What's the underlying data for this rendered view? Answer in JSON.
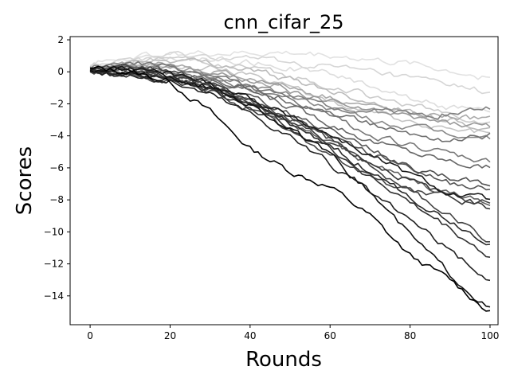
{
  "chart_data": {
    "type": "line",
    "title": "cnn_cifar_25",
    "xlabel": "Rounds",
    "ylabel": "Scores",
    "xlim": [
      -5,
      102
    ],
    "ylim": [
      -15.8,
      2.2
    ],
    "xticks": [
      0,
      20,
      40,
      60,
      80,
      100
    ],
    "yticks": [
      2,
      0,
      -2,
      -4,
      -6,
      -8,
      -10,
      -12,
      -14
    ],
    "grid": false,
    "legend": "none",
    "series": [
      {
        "color": "#000000",
        "points": [
          [
            0,
            0.2
          ],
          [
            10,
            0.0
          ],
          [
            20,
            -0.6
          ],
          [
            30,
            -2.5
          ],
          [
            40,
            -4.8
          ],
          [
            50,
            -6.2
          ],
          [
            60,
            -7.2
          ],
          [
            70,
            -9.0
          ],
          [
            80,
            -11.5
          ],
          [
            90,
            -13.0
          ],
          [
            100,
            -15.0
          ]
        ]
      },
      {
        "color": "#111111",
        "points": [
          [
            0,
            0.1
          ],
          [
            10,
            0.1
          ],
          [
            20,
            -0.3
          ],
          [
            30,
            -1.0
          ],
          [
            40,
            -2.0
          ],
          [
            50,
            -3.6
          ],
          [
            60,
            -5.3
          ],
          [
            70,
            -7.5
          ],
          [
            80,
            -10.2
          ],
          [
            90,
            -12.6
          ],
          [
            100,
            -14.8
          ]
        ]
      },
      {
        "color": "#222222",
        "points": [
          [
            0,
            0.0
          ],
          [
            10,
            -0.2
          ],
          [
            20,
            -0.6
          ],
          [
            30,
            -1.4
          ],
          [
            40,
            -2.6
          ],
          [
            50,
            -4.0
          ],
          [
            60,
            -5.8
          ],
          [
            70,
            -7.6
          ],
          [
            80,
            -9.3
          ],
          [
            90,
            -11.2
          ],
          [
            100,
            -13.1
          ]
        ]
      },
      {
        "color": "#333333",
        "points": [
          [
            0,
            0.1
          ],
          [
            10,
            0.0
          ],
          [
            20,
            -0.5
          ],
          [
            30,
            -1.2
          ],
          [
            40,
            -2.2
          ],
          [
            50,
            -3.4
          ],
          [
            60,
            -4.8
          ],
          [
            70,
            -6.5
          ],
          [
            80,
            -8.2
          ],
          [
            90,
            -9.8
          ],
          [
            100,
            -11.6
          ]
        ]
      },
      {
        "color": "#2a2a2a",
        "points": [
          [
            0,
            0.0
          ],
          [
            10,
            -0.1
          ],
          [
            20,
            -0.4
          ],
          [
            30,
            -1.1
          ],
          [
            40,
            -2.1
          ],
          [
            50,
            -3.3
          ],
          [
            60,
            -4.6
          ],
          [
            70,
            -6.2
          ],
          [
            80,
            -7.8
          ],
          [
            90,
            -9.3
          ],
          [
            100,
            -10.7
          ]
        ]
      },
      {
        "color": "#444444",
        "points": [
          [
            0,
            0.2
          ],
          [
            10,
            0.3
          ],
          [
            20,
            0.0
          ],
          [
            30,
            -0.8
          ],
          [
            40,
            -1.8
          ],
          [
            50,
            -3.0
          ],
          [
            60,
            -4.2
          ],
          [
            70,
            -5.8
          ],
          [
            80,
            -7.4
          ],
          [
            90,
            -9.0
          ],
          [
            100,
            -10.5
          ]
        ]
      },
      {
        "color": "#1a1a1a",
        "points": [
          [
            0,
            0.1
          ],
          [
            10,
            0.2
          ],
          [
            20,
            -0.1
          ],
          [
            30,
            -0.7
          ],
          [
            40,
            -1.6
          ],
          [
            50,
            -2.8
          ],
          [
            60,
            -3.9
          ],
          [
            70,
            -5.2
          ],
          [
            80,
            -6.4
          ],
          [
            90,
            -7.6
          ],
          [
            100,
            -8.0
          ]
        ]
      },
      {
        "color": "#3a3a3a",
        "points": [
          [
            0,
            0.0
          ],
          [
            10,
            0.0
          ],
          [
            20,
            -0.2
          ],
          [
            30,
            -0.9
          ],
          [
            40,
            -1.8
          ],
          [
            50,
            -3.1
          ],
          [
            60,
            -4.3
          ],
          [
            70,
            -5.6
          ],
          [
            80,
            -6.8
          ],
          [
            90,
            -7.8
          ],
          [
            100,
            -8.5
          ]
        ]
      },
      {
        "color": "#555555",
        "points": [
          [
            0,
            0.1
          ],
          [
            10,
            0.1
          ],
          [
            20,
            -0.2
          ],
          [
            30,
            -0.8
          ],
          [
            40,
            -1.6
          ],
          [
            50,
            -2.6
          ],
          [
            60,
            -3.6
          ],
          [
            70,
            -4.8
          ],
          [
            80,
            -6.0
          ],
          [
            90,
            -7.0
          ],
          [
            100,
            -7.2
          ]
        ]
      },
      {
        "color": "#666666",
        "points": [
          [
            0,
            0.0
          ],
          [
            10,
            0.2
          ],
          [
            20,
            0.1
          ],
          [
            30,
            -0.4
          ],
          [
            40,
            -1.2
          ],
          [
            50,
            -2.2
          ],
          [
            60,
            -3.2
          ],
          [
            70,
            -4.3
          ],
          [
            80,
            -5.0
          ],
          [
            90,
            -5.6
          ],
          [
            100,
            -6.0
          ]
        ]
      },
      {
        "color": "#777777",
        "points": [
          [
            0,
            0.3
          ],
          [
            10,
            0.5
          ],
          [
            20,
            0.3
          ],
          [
            30,
            -0.2
          ],
          [
            40,
            -0.9
          ],
          [
            50,
            -1.8
          ],
          [
            60,
            -2.8
          ],
          [
            70,
            -3.9
          ],
          [
            80,
            -4.6
          ],
          [
            90,
            -5.2
          ],
          [
            100,
            -5.7
          ]
        ]
      },
      {
        "color": "#888888",
        "points": [
          [
            0,
            0.2
          ],
          [
            10,
            0.4
          ],
          [
            20,
            0.2
          ],
          [
            30,
            -0.3
          ],
          [
            40,
            -0.8
          ],
          [
            50,
            -1.5
          ],
          [
            60,
            -2.3
          ],
          [
            70,
            -3.0
          ],
          [
            80,
            -3.5
          ],
          [
            90,
            -3.9
          ],
          [
            100,
            -4.2
          ]
        ]
      },
      {
        "color": "#999999",
        "points": [
          [
            0,
            0.1
          ],
          [
            10,
            0.3
          ],
          [
            20,
            0.2
          ],
          [
            30,
            -0.1
          ],
          [
            40,
            -0.6
          ],
          [
            50,
            -1.2
          ],
          [
            60,
            -1.9
          ],
          [
            70,
            -2.5
          ],
          [
            80,
            -2.9
          ],
          [
            90,
            -3.2
          ],
          [
            100,
            -3.4
          ]
        ]
      },
      {
        "color": "#808080",
        "points": [
          [
            0,
            0.0
          ],
          [
            10,
            0.1
          ],
          [
            20,
            -0.1
          ],
          [
            30,
            -0.5
          ],
          [
            40,
            -1.0
          ],
          [
            50,
            -1.6
          ],
          [
            60,
            -2.1
          ],
          [
            70,
            -2.4
          ],
          [
            80,
            -2.7
          ],
          [
            90,
            -2.6
          ],
          [
            100,
            -2.2
          ]
        ]
      },
      {
        "color": "#707070",
        "points": [
          [
            0,
            0.1
          ],
          [
            10,
            0.2
          ],
          [
            20,
            0.1
          ],
          [
            30,
            -0.4
          ],
          [
            40,
            -1.1
          ],
          [
            50,
            -1.8
          ],
          [
            60,
            -2.5
          ],
          [
            70,
            -3.3
          ],
          [
            80,
            -3.9
          ],
          [
            90,
            -4.3
          ],
          [
            100,
            -4.0
          ]
        ]
      },
      {
        "color": "#aaaaaa",
        "points": [
          [
            0,
            0.2
          ],
          [
            10,
            0.5
          ],
          [
            20,
            0.4
          ],
          [
            30,
            0.0
          ],
          [
            40,
            -0.5
          ],
          [
            50,
            -1.0
          ],
          [
            60,
            -1.6
          ],
          [
            70,
            -2.2
          ],
          [
            80,
            -2.6
          ],
          [
            90,
            -2.8
          ],
          [
            100,
            -3.0
          ]
        ]
      },
      {
        "color": "#bbbbbb",
        "points": [
          [
            0,
            0.1
          ],
          [
            10,
            0.6
          ],
          [
            20,
            0.7
          ],
          [
            30,
            0.5
          ],
          [
            40,
            0.1
          ],
          [
            50,
            -0.5
          ],
          [
            60,
            -1.2
          ],
          [
            70,
            -1.9
          ],
          [
            80,
            -2.5
          ],
          [
            90,
            -3.0
          ],
          [
            100,
            -3.6
          ]
        ]
      },
      {
        "color": "#cccccc",
        "points": [
          [
            0,
            0.2
          ],
          [
            10,
            0.6
          ],
          [
            20,
            0.8
          ],
          [
            30,
            0.6
          ],
          [
            40,
            0.2
          ],
          [
            50,
            -0.3
          ],
          [
            60,
            -0.9
          ],
          [
            70,
            -1.5
          ],
          [
            80,
            -2.1
          ],
          [
            90,
            -2.7
          ],
          [
            100,
            -3.2
          ]
        ]
      },
      {
        "color": "#d6d6d6",
        "points": [
          [
            0,
            0.3
          ],
          [
            10,
            0.8
          ],
          [
            20,
            1.0
          ],
          [
            30,
            0.9
          ],
          [
            40,
            0.8
          ],
          [
            50,
            0.6
          ],
          [
            60,
            0.3
          ],
          [
            70,
            0.0
          ],
          [
            80,
            -0.4
          ],
          [
            90,
            -0.8
          ],
          [
            100,
            -1.3
          ]
        ]
      },
      {
        "color": "#e2e2e2",
        "points": [
          [
            0,
            0.4
          ],
          [
            10,
            1.0
          ],
          [
            20,
            1.1
          ],
          [
            30,
            1.2
          ],
          [
            40,
            1.2
          ],
          [
            50,
            1.2
          ],
          [
            60,
            1.1
          ],
          [
            70,
            0.8
          ],
          [
            80,
            0.5
          ],
          [
            90,
            0.1
          ],
          [
            100,
            -0.4
          ]
        ]
      },
      {
        "color": "#dddddd",
        "points": [
          [
            0,
            0.2
          ],
          [
            10,
            0.7
          ],
          [
            20,
            0.9
          ],
          [
            30,
            0.8
          ],
          [
            40,
            0.6
          ],
          [
            50,
            0.3
          ],
          [
            60,
            -0.2
          ],
          [
            70,
            -0.8
          ],
          [
            80,
            -1.6
          ],
          [
            90,
            -2.2
          ],
          [
            100,
            -2.6
          ]
        ]
      },
      {
        "color": "#c4c4c4",
        "points": [
          [
            0,
            0.1
          ],
          [
            10,
            0.4
          ],
          [
            20,
            0.5
          ],
          [
            30,
            0.2
          ],
          [
            40,
            -0.3
          ],
          [
            50,
            -1.0
          ],
          [
            60,
            -1.8
          ],
          [
            70,
            -2.6
          ],
          [
            80,
            -3.2
          ],
          [
            90,
            -3.6
          ],
          [
            100,
            -3.8
          ]
        ]
      },
      {
        "color": "#606060",
        "points": [
          [
            0,
            0.0
          ],
          [
            10,
            0.0
          ],
          [
            20,
            -0.3
          ],
          [
            30,
            -1.0
          ],
          [
            40,
            -2.0
          ],
          [
            50,
            -3.2
          ],
          [
            60,
            -4.4
          ],
          [
            70,
            -5.7
          ],
          [
            80,
            -6.8
          ],
          [
            90,
            -7.6
          ],
          [
            100,
            -8.3
          ]
        ]
      },
      {
        "color": "#505050",
        "points": [
          [
            0,
            0.1
          ],
          [
            10,
            0.1
          ],
          [
            20,
            -0.2
          ],
          [
            30,
            -0.9
          ],
          [
            40,
            -1.9
          ],
          [
            50,
            -2.9
          ],
          [
            60,
            -4.0
          ],
          [
            70,
            -5.1
          ],
          [
            80,
            -6.0
          ],
          [
            90,
            -6.6
          ],
          [
            100,
            -7.0
          ]
        ]
      },
      {
        "color": "#454545",
        "points": [
          [
            0,
            0.0
          ],
          [
            10,
            -0.1
          ],
          [
            20,
            -0.5
          ],
          [
            30,
            -1.2
          ],
          [
            40,
            -2.4
          ],
          [
            50,
            -3.8
          ],
          [
            60,
            -5.2
          ],
          [
            70,
            -6.6
          ],
          [
            80,
            -7.4
          ],
          [
            90,
            -7.9
          ],
          [
            100,
            -8.1
          ]
        ]
      }
    ]
  }
}
